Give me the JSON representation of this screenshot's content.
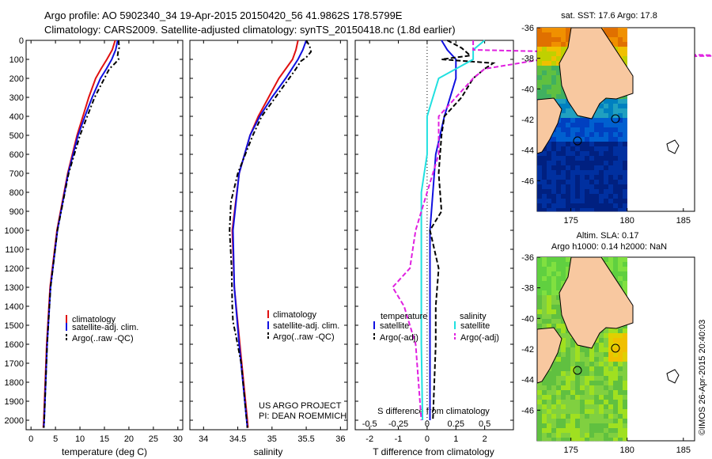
{
  "header": {
    "line1": "Argo profile: AO 5902340_34 19-Apr-2015 20150420_56 41.9862S 178.5799E",
    "line2": "Climatology: CARS2009. Satellite-adjusted climatology: synTS_20150418.nc (1.8d earlier)"
  },
  "credit": "©IMOS 26-Apr-2015 20:40:03",
  "project": {
    "line1": "US ARGO PROJECT",
    "line2": "PI: DEAN ROEMMICH"
  },
  "colors": {
    "climatology": "#e01010",
    "satellite": "#1010e0",
    "argo": "#000000",
    "sal_satellite": "#20e0e0",
    "sal_argo": "#e020e0",
    "land": "#f8c8a0"
  },
  "chart_data": [
    {
      "type": "line",
      "xlabel": "temperature (deg C)",
      "ylim": [
        2050,
        0
      ],
      "xlim": [
        -1,
        31
      ],
      "xticks": [
        0,
        5,
        10,
        15,
        20,
        25,
        30
      ],
      "yticks": [
        0,
        100,
        200,
        300,
        400,
        500,
        600,
        700,
        800,
        900,
        1000,
        1100,
        1200,
        1300,
        1400,
        1500,
        1600,
        1700,
        1800,
        1900,
        2000
      ],
      "legend": [
        "climatology",
        "satellite-adj. clim.",
        "Argo(..raw -QC)"
      ],
      "series": [
        {
          "name": "climatology",
          "depth": [
            0,
            50,
            100,
            150,
            200,
            300,
            400,
            500,
            700,
            1000,
            1300,
            1600,
            2000,
            2040
          ],
          "values": [
            17.2,
            16.6,
            15.5,
            14.3,
            13.2,
            11.8,
            10.6,
            9.4,
            7.5,
            5.3,
            3.9,
            3.2,
            2.6,
            2.5
          ]
        },
        {
          "name": "satellite-adj. clim.",
          "depth": [
            0,
            50,
            100,
            150,
            200,
            300,
            400,
            500,
            700,
            1000,
            1300,
            1600,
            2000,
            2040
          ],
          "values": [
            17.7,
            17.3,
            16.5,
            15.4,
            14.2,
            12.5,
            11.0,
            9.6,
            7.6,
            5.4,
            4.0,
            3.3,
            2.7,
            2.6
          ]
        },
        {
          "name": "Argo(..raw -QC)",
          "depth": [
            0,
            40,
            60,
            80,
            100,
            120,
            150,
            200,
            250,
            300,
            400,
            500,
            700,
            1000,
            1300,
            1600,
            2000,
            2040
          ],
          "values": [
            17.9,
            18.0,
            17.8,
            17.7,
            17.9,
            17.2,
            16.0,
            15.0,
            14.0,
            13.0,
            11.5,
            10.0,
            7.7,
            5.4,
            4.0,
            3.3,
            2.7,
            2.6
          ]
        }
      ]
    },
    {
      "type": "line",
      "xlabel": "salinity",
      "ylim": [
        2050,
        0
      ],
      "xlim": [
        33.8,
        36.1
      ],
      "xticks": [
        34,
        34.5,
        35,
        35.5,
        36
      ],
      "legend": [
        "climatology",
        "satellite-adj. clim.",
        "Argo(..raw -QC)"
      ],
      "series": [
        {
          "name": "climatology",
          "depth": [
            0,
            50,
            100,
            200,
            300,
            400,
            500,
            700,
            1000,
            1300,
            1600,
            2000,
            2040
          ],
          "values": [
            35.38,
            35.35,
            35.3,
            35.1,
            34.95,
            34.8,
            34.68,
            34.52,
            34.42,
            34.45,
            34.53,
            34.64,
            34.65
          ]
        },
        {
          "name": "satellite-adj. clim.",
          "depth": [
            0,
            50,
            100,
            200,
            300,
            400,
            500,
            700,
            1000,
            1300,
            1600,
            2000,
            2040
          ],
          "values": [
            35.5,
            35.45,
            35.38,
            35.2,
            35.0,
            34.82,
            34.68,
            34.52,
            34.43,
            34.45,
            34.52,
            34.63,
            34.64
          ]
        },
        {
          "name": "Argo(..raw -QC)",
          "depth": [
            0,
            30,
            60,
            90,
            110,
            150,
            200,
            300,
            400,
            500,
            700,
            850,
            1000,
            1200,
            1400,
            1480,
            1550,
            1700,
            2000,
            2040
          ],
          "values": [
            35.5,
            35.55,
            35.57,
            35.5,
            35.42,
            35.35,
            35.25,
            35.05,
            34.85,
            34.72,
            34.5,
            34.4,
            34.38,
            34.41,
            34.42,
            34.43,
            34.47,
            34.55,
            34.63,
            34.64
          ]
        }
      ]
    },
    {
      "type": "line",
      "xlabel": "T difference from climatology",
      "xlabel_top": "S difference from climatology",
      "ylim": [
        2050,
        0
      ],
      "xlim": [
        -2.5,
        3
      ],
      "xticks": [
        -2,
        -1,
        0,
        1,
        2
      ],
      "xticks_top": [
        "-0.5",
        "-0.25",
        "0",
        "0.25",
        "0.5"
      ],
      "legend_titles": [
        "temperature",
        "salinity"
      ],
      "legend": [
        "satellite",
        "Argo(-adj)",
        "satellite",
        "Argo(-adj)"
      ],
      "series": [
        {
          "name": "satellite",
          "depth": [
            0,
            50,
            100,
            200,
            400,
            600,
            800,
            1000,
            1200,
            1400,
            1600,
            2000
          ],
          "values": [
            0.5,
            0.7,
            1.0,
            1.0,
            0.6,
            0.3,
            0.2,
            0.1,
            0.1,
            0.1,
            0.1,
            0.1
          ]
        },
        {
          "name": "Argo(-adj)",
          "depth": [
            0,
            40,
            80,
            100,
            120,
            150,
            200,
            300,
            400,
            500,
            700,
            900,
            1000,
            1200,
            1400,
            1600,
            1800,
            2000
          ],
          "values": [
            0.7,
            1.2,
            1.5,
            0.5,
            2.3,
            2.0,
            1.6,
            1.2,
            0.6,
            0.5,
            0.4,
            0.5,
            0.1,
            0.4,
            0.3,
            0.3,
            0.25,
            0.2
          ]
        },
        {
          "name": "satellite",
          "depth": [
            0,
            50,
            100,
            200,
            400,
            600,
            800,
            1000,
            1200,
            1400,
            1600,
            2000
          ],
          "values": [
            0.5,
            0.4,
            0.4,
            0.1,
            0.0,
            0.0,
            -0.05,
            -0.05,
            -0.05,
            -0.05,
            -0.05,
            -0.04
          ]
        },
        {
          "name": "Argo(-adj)",
          "depth": [
            0,
            50,
            80,
            100,
            150,
            200,
            400,
            600,
            800,
            1000,
            1200,
            1300,
            1400,
            1600,
            2000
          ],
          "values": [
            0.4,
            0.4,
            2.6,
            1.0,
            0.5,
            0.4,
            0.1,
            0.1,
            0.0,
            -0.1,
            -0.15,
            -0.3,
            -0.2,
            -0.1,
            -0.05
          ]
        }
      ]
    },
    {
      "type": "heatmap",
      "title": "sat. SST: 17.6 Argo: 17.8",
      "xlim": [
        172,
        186
      ],
      "ylim": [
        -48,
        -36
      ],
      "xticks": [
        175,
        180,
        185
      ],
      "yticks": [
        -36,
        -38,
        -40,
        -42,
        -44,
        -46
      ],
      "float_positions": [
        [
          178.6,
          -42.0
        ],
        [
          175.3,
          -43.4
        ]
      ]
    },
    {
      "type": "heatmap",
      "title": "Altim. SLA: 0.17",
      "subtitle": "Argo h1000: 0.14 h2000: NaN",
      "xlim": [
        172,
        186
      ],
      "ylim": [
        -48,
        -36
      ],
      "xticks": [
        175,
        180,
        185
      ],
      "yticks": [
        -36,
        -38,
        -40,
        -42,
        -44,
        -46
      ],
      "float_positions": [
        [
          178.6,
          -42.0
        ],
        [
          175.3,
          -43.4
        ]
      ]
    }
  ]
}
